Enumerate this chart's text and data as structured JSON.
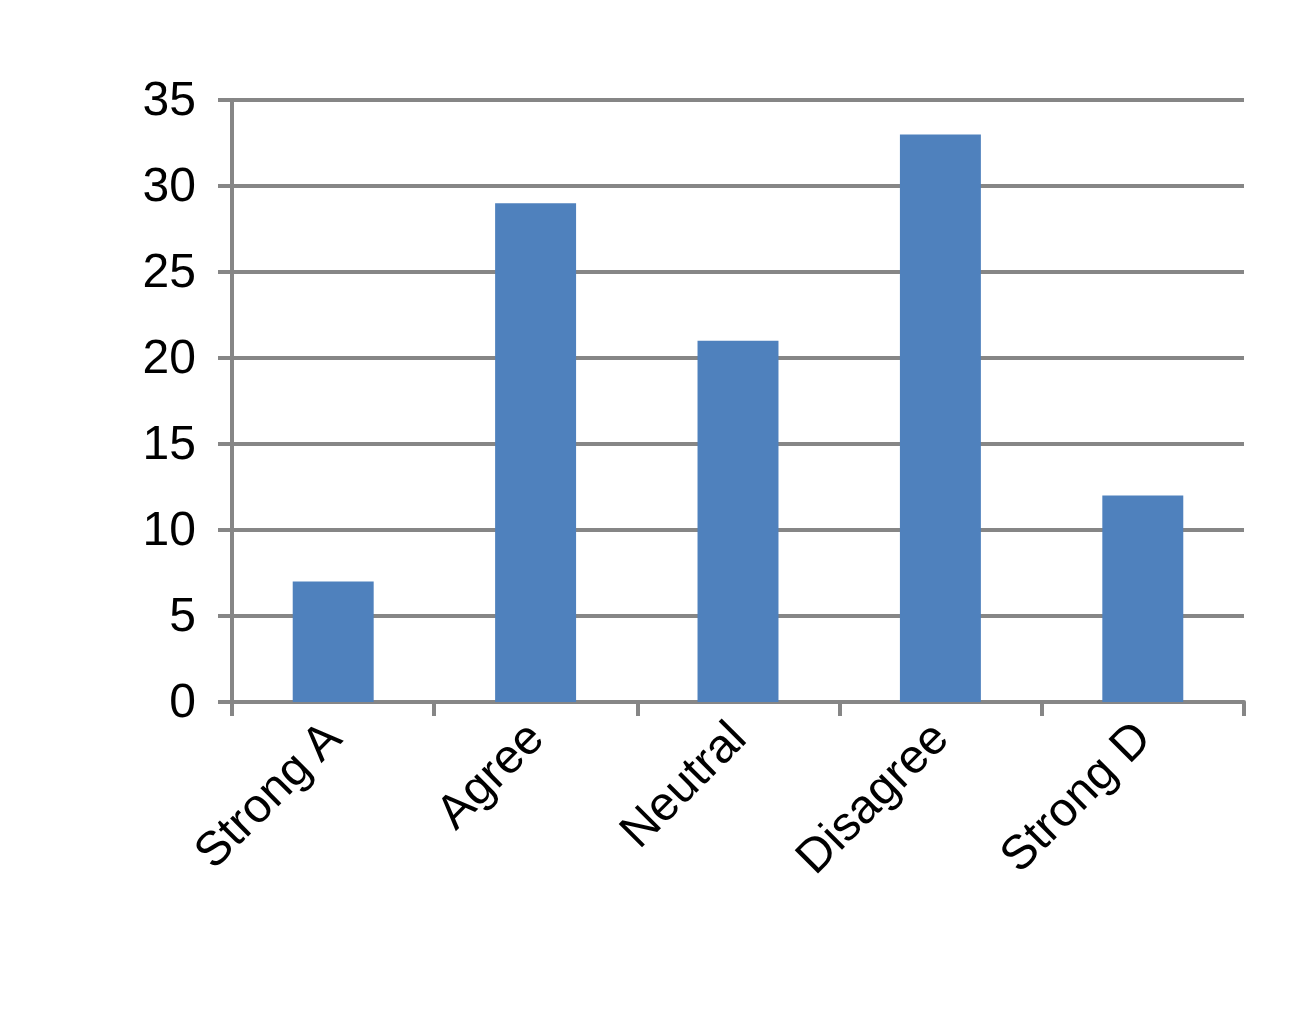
{
  "chart_data": {
    "type": "bar",
    "categories": [
      "Strong A",
      "Agree",
      "Neutral",
      "Disagree",
      "Strong D"
    ],
    "values": [
      7,
      29,
      21,
      33,
      12
    ],
    "color": "#4f81bd",
    "ylim": [
      0,
      35
    ],
    "yticks": [
      0,
      5,
      10,
      15,
      20,
      25,
      30,
      35
    ],
    "grid": "y"
  }
}
